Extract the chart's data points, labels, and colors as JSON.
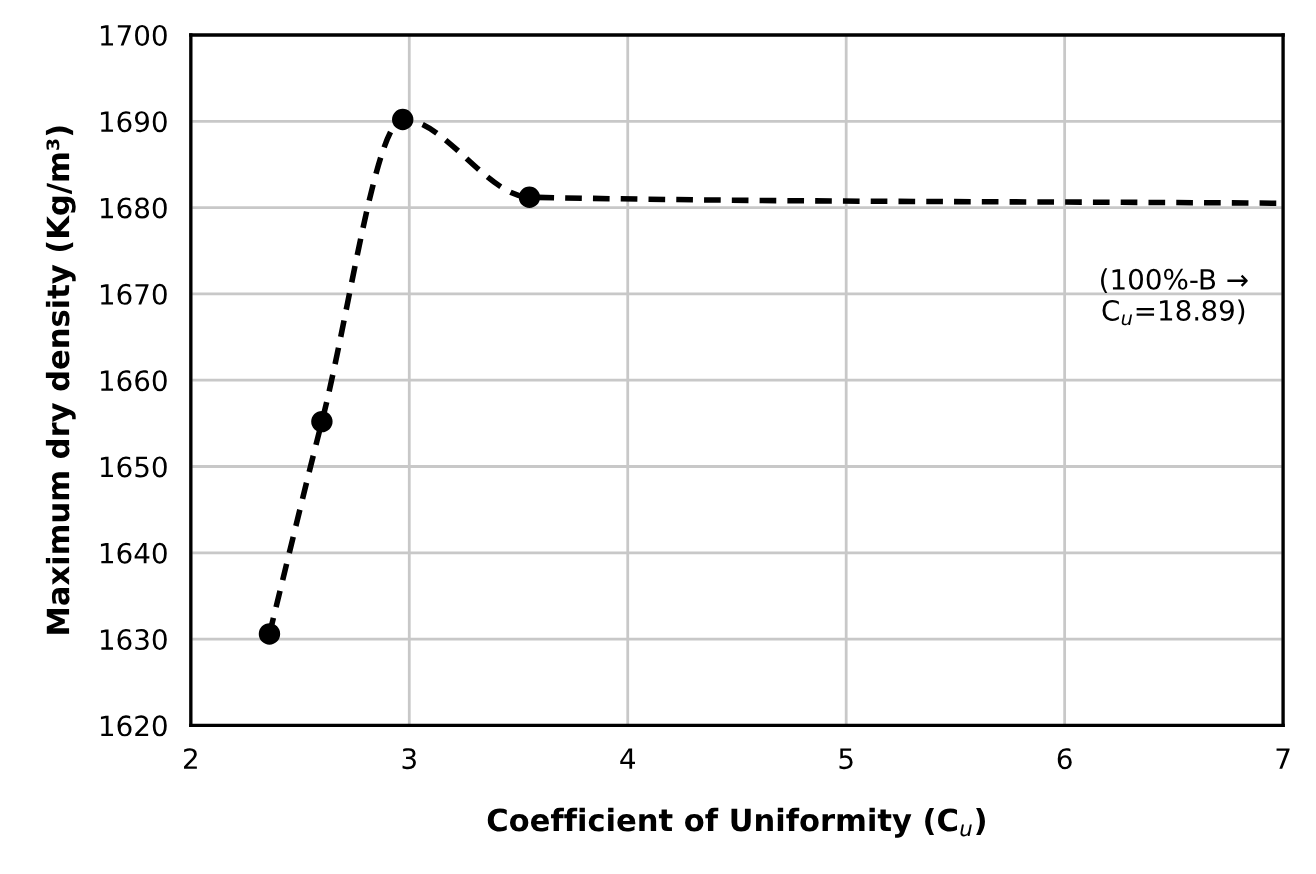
{
  "chart_data": {
    "type": "line",
    "xlabel": "Coefficient of Uniformity (C$_{u}$)",
    "ylabel": "Maximum dry density (Kg/m³)",
    "series": [
      {
        "x": [
          2.36,
          2.6,
          2.97,
          3.55,
          7
        ],
        "values": [
          1630.6,
          1655.2,
          1690.2,
          1681.2,
          1680.5
        ],
        "color": "#000000",
        "marker": "none",
        "line_style": "dashed"
      },
      {
        "type": "scatter",
        "x": [
          2.36,
          2.6,
          2.97,
          3.55
        ],
        "values": [
          1630.6,
          1655.2,
          1690.2,
          1681.2
        ],
        "color": "#000000",
        "marker": "circle"
      }
    ],
    "annotations": [
      "(100%-B →\nC$_{u}$=18.89)"
    ],
    "xlim": [
      2,
      7
    ],
    "xticks": [
      2,
      3,
      4,
      5,
      6,
      7
    ],
    "ylim": [
      1620,
      1700
    ],
    "yticks": [
      1620,
      1630,
      1640,
      1650,
      1660,
      1670,
      1680,
      1690,
      1700
    ],
    "grid": true
  }
}
